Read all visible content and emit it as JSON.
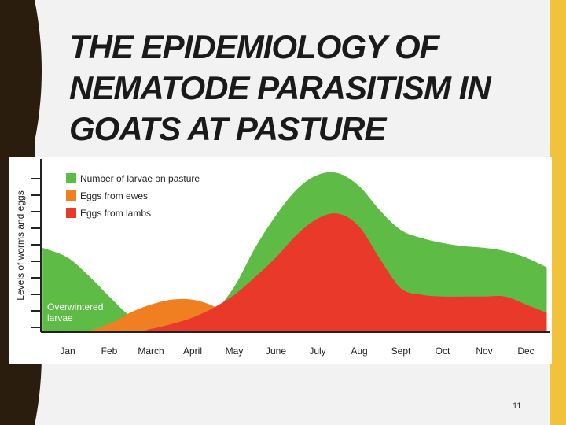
{
  "slide": {
    "title": "THE EPIDEMIOLOGY OF NEMATODE PARASITISM IN GOATS AT PASTURE",
    "page_number": "11",
    "colors": {
      "left_band": "#2b1d0e",
      "right_band": "#f2c23a",
      "background": "#f2f2f2"
    }
  },
  "chart_data": {
    "type": "area",
    "ylabel": "Levels of worms and eggs",
    "categories": [
      "Jan",
      "Feb",
      "March",
      "April",
      "May",
      "June",
      "July",
      "Aug",
      "Sept",
      "Oct",
      "Nov",
      "Dec"
    ],
    "annotation": "Overwintered larvae",
    "y_ticks": 10,
    "grid": false,
    "legend_position": "top-left",
    "series": [
      {
        "name": "Number of larvae on pasture",
        "color": "#5dbb46",
        "x": [
          -0.6,
          0,
          0.5,
          1,
          1.5,
          2,
          3,
          3.5,
          4,
          4.5,
          5,
          5.5,
          6,
          6.5,
          7,
          7.5,
          8,
          8.5,
          9,
          9.5,
          10,
          10.5,
          11,
          11.5
        ],
        "values": [
          0.52,
          0.46,
          0.35,
          0.22,
          0.1,
          0.04,
          0.04,
          0.12,
          0.28,
          0.52,
          0.72,
          0.88,
          0.97,
          0.98,
          0.9,
          0.75,
          0.63,
          0.58,
          0.55,
          0.53,
          0.52,
          0.5,
          0.46,
          0.4
        ]
      },
      {
        "name": "Eggs from ewes",
        "color": "#f07f22",
        "x": [
          -0.6,
          0.3,
          1,
          1.5,
          2,
          2.5,
          3,
          3.5,
          4,
          4.5,
          5,
          5.5
        ],
        "values": [
          0,
          0,
          0.05,
          0.12,
          0.17,
          0.2,
          0.2,
          0.16,
          0.08,
          0.03,
          0,
          0
        ]
      },
      {
        "name": "Eggs from lambs",
        "color": "#e8392a",
        "x": [
          -0.6,
          1.5,
          2,
          2.5,
          3,
          3.5,
          4,
          4.5,
          5,
          5.5,
          6,
          6.5,
          7,
          7.5,
          8,
          8.5,
          9,
          9.5,
          10,
          10.5,
          11,
          11.5
        ],
        "values": [
          0,
          0,
          0.02,
          0.05,
          0.09,
          0.15,
          0.23,
          0.34,
          0.46,
          0.6,
          0.7,
          0.73,
          0.65,
          0.45,
          0.27,
          0.23,
          0.22,
          0.22,
          0.22,
          0.22,
          0.17,
          0.12
        ]
      }
    ]
  }
}
